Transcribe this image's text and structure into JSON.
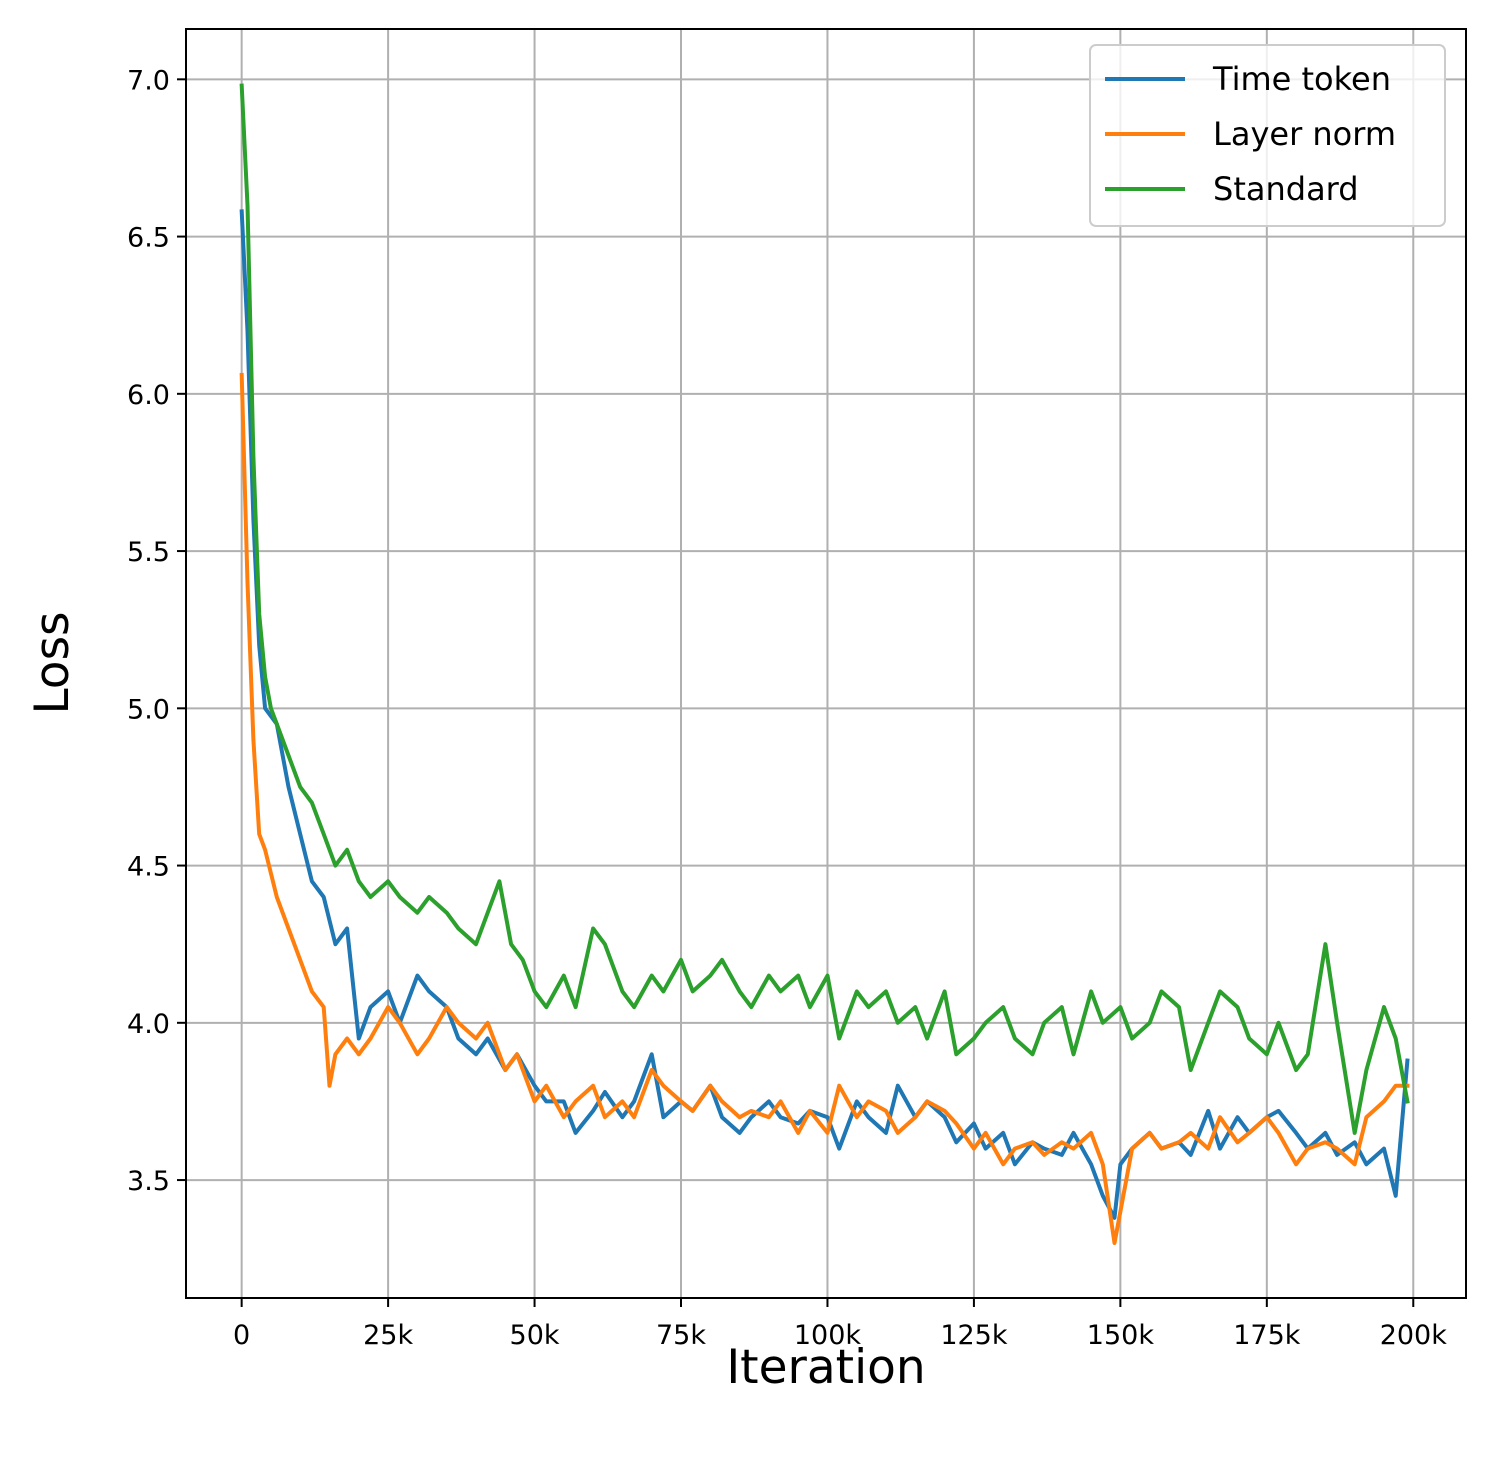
{
  "chart_data": {
    "type": "line",
    "xlabel": "Iteration",
    "ylabel": "Loss",
    "xlim": [
      -9500,
      209000
    ],
    "ylim": [
      3.125,
      7.16
    ],
    "x_ticks": [
      {
        "value": 0,
        "label": "0"
      },
      {
        "value": 25000,
        "label": "25k"
      },
      {
        "value": 50000,
        "label": "50k"
      },
      {
        "value": 75000,
        "label": "75k"
      },
      {
        "value": 100000,
        "label": "100k"
      },
      {
        "value": 125000,
        "label": "125k"
      },
      {
        "value": 150000,
        "label": "150k"
      },
      {
        "value": 175000,
        "label": "175k"
      },
      {
        "value": 200000,
        "label": "200k"
      }
    ],
    "y_ticks": [
      {
        "value": 3.5,
        "label": "3.5"
      },
      {
        "value": 4.0,
        "label": "4.0"
      },
      {
        "value": 4.5,
        "label": "4.5"
      },
      {
        "value": 5.0,
        "label": "5.0"
      },
      {
        "value": 5.5,
        "label": "5.5"
      },
      {
        "value": 6.0,
        "label": "6.0"
      },
      {
        "value": 6.5,
        "label": "6.5"
      },
      {
        "value": 7.0,
        "label": "7.0"
      }
    ],
    "grid": true,
    "legend_position": "top-right",
    "series": [
      {
        "name": "Time token",
        "color": "#1f77b4",
        "x": [
          0,
          1000,
          2000,
          3000,
          4000,
          6000,
          8000,
          10000,
          12000,
          14000,
          16000,
          18000,
          20000,
          22000,
          25000,
          27000,
          30000,
          32000,
          35000,
          37000,
          40000,
          42000,
          45000,
          47000,
          50000,
          52000,
          55000,
          57000,
          60000,
          62000,
          65000,
          67000,
          70000,
          72000,
          75000,
          77000,
          80000,
          82000,
          85000,
          87000,
          90000,
          92000,
          95000,
          97000,
          100000,
          102000,
          105000,
          107000,
          110000,
          112000,
          115000,
          117000,
          120000,
          122000,
          125000,
          127000,
          130000,
          132000,
          135000,
          137000,
          140000,
          142000,
          145000,
          147000,
          149000,
          150000,
          152000,
          155000,
          157000,
          160000,
          162000,
          165000,
          167000,
          170000,
          172000,
          175000,
          177000,
          180000,
          182000,
          185000,
          187000,
          190000,
          192000,
          195000,
          197000,
          199000
        ],
        "values": [
          6.58,
          6.2,
          5.6,
          5.2,
          5.0,
          4.95,
          4.75,
          4.6,
          4.45,
          4.4,
          4.25,
          4.3,
          3.95,
          4.05,
          4.1,
          4.0,
          4.15,
          4.1,
          4.05,
          3.95,
          3.9,
          3.95,
          3.85,
          3.9,
          3.8,
          3.75,
          3.75,
          3.65,
          3.72,
          3.78,
          3.7,
          3.75,
          3.9,
          3.7,
          3.75,
          3.72,
          3.8,
          3.7,
          3.65,
          3.7,
          3.75,
          3.7,
          3.68,
          3.72,
          3.7,
          3.6,
          3.75,
          3.7,
          3.65,
          3.8,
          3.7,
          3.75,
          3.7,
          3.62,
          3.68,
          3.6,
          3.65,
          3.55,
          3.62,
          3.6,
          3.58,
          3.65,
          3.55,
          3.45,
          3.38,
          3.55,
          3.6,
          3.65,
          3.6,
          3.62,
          3.58,
          3.72,
          3.6,
          3.7,
          3.65,
          3.7,
          3.72,
          3.65,
          3.6,
          3.65,
          3.58,
          3.62,
          3.55,
          3.6,
          3.45,
          3.88
        ]
      },
      {
        "name": "Layer norm",
        "color": "#ff7f0e",
        "x": [
          0,
          1000,
          2000,
          3000,
          4000,
          6000,
          8000,
          10000,
          12000,
          14000,
          15000,
          16000,
          18000,
          20000,
          22000,
          25000,
          27000,
          30000,
          32000,
          35000,
          37000,
          40000,
          42000,
          45000,
          47000,
          50000,
          52000,
          55000,
          57000,
          60000,
          62000,
          65000,
          67000,
          70000,
          72000,
          75000,
          77000,
          80000,
          82000,
          85000,
          87000,
          90000,
          92000,
          95000,
          97000,
          100000,
          102000,
          105000,
          107000,
          110000,
          112000,
          115000,
          117000,
          120000,
          122000,
          125000,
          127000,
          130000,
          132000,
          135000,
          137000,
          140000,
          142000,
          145000,
          147000,
          149000,
          150000,
          152000,
          155000,
          157000,
          160000,
          162000,
          165000,
          167000,
          170000,
          172000,
          175000,
          177000,
          180000,
          182000,
          185000,
          187000,
          190000,
          192000,
          195000,
          197000,
          199000
        ],
        "values": [
          6.06,
          5.4,
          4.9,
          4.6,
          4.55,
          4.4,
          4.3,
          4.2,
          4.1,
          4.05,
          3.8,
          3.9,
          3.95,
          3.9,
          3.95,
          4.05,
          4.0,
          3.9,
          3.95,
          4.05,
          4.0,
          3.95,
          4.0,
          3.85,
          3.9,
          3.75,
          3.8,
          3.7,
          3.75,
          3.8,
          3.7,
          3.75,
          3.7,
          3.85,
          3.8,
          3.75,
          3.72,
          3.8,
          3.75,
          3.7,
          3.72,
          3.7,
          3.75,
          3.65,
          3.72,
          3.65,
          3.8,
          3.7,
          3.75,
          3.72,
          3.65,
          3.7,
          3.75,
          3.72,
          3.68,
          3.6,
          3.65,
          3.55,
          3.6,
          3.62,
          3.58,
          3.62,
          3.6,
          3.65,
          3.55,
          3.3,
          3.4,
          3.6,
          3.65,
          3.6,
          3.62,
          3.65,
          3.6,
          3.7,
          3.62,
          3.65,
          3.7,
          3.65,
          3.55,
          3.6,
          3.62,
          3.6,
          3.55,
          3.7,
          3.75,
          3.8,
          3.8
        ]
      },
      {
        "name": "Standard",
        "color": "#2ca02c",
        "x": [
          0,
          1000,
          2000,
          3000,
          4000,
          5000,
          6000,
          8000,
          10000,
          12000,
          14000,
          16000,
          18000,
          20000,
          22000,
          25000,
          27000,
          30000,
          32000,
          35000,
          37000,
          40000,
          42000,
          44000,
          46000,
          48000,
          50000,
          52000,
          55000,
          57000,
          60000,
          62000,
          65000,
          67000,
          70000,
          72000,
          75000,
          77000,
          80000,
          82000,
          85000,
          87000,
          90000,
          92000,
          95000,
          97000,
          100000,
          102000,
          105000,
          107000,
          110000,
          112000,
          115000,
          117000,
          120000,
          122000,
          125000,
          127000,
          130000,
          132000,
          135000,
          137000,
          140000,
          142000,
          145000,
          147000,
          150000,
          152000,
          155000,
          157000,
          160000,
          162000,
          165000,
          167000,
          170000,
          172000,
          175000,
          177000,
          180000,
          182000,
          185000,
          187000,
          190000,
          192000,
          195000,
          197000,
          199000
        ],
        "values": [
          6.98,
          6.6,
          5.8,
          5.3,
          5.1,
          5.0,
          4.95,
          4.85,
          4.75,
          4.7,
          4.6,
          4.5,
          4.55,
          4.45,
          4.4,
          4.45,
          4.4,
          4.35,
          4.4,
          4.35,
          4.3,
          4.25,
          4.35,
          4.45,
          4.25,
          4.2,
          4.1,
          4.05,
          4.15,
          4.05,
          4.3,
          4.25,
          4.1,
          4.05,
          4.15,
          4.1,
          4.2,
          4.1,
          4.15,
          4.2,
          4.1,
          4.05,
          4.15,
          4.1,
          4.15,
          4.05,
          4.15,
          3.95,
          4.1,
          4.05,
          4.1,
          4.0,
          4.05,
          3.95,
          4.1,
          3.9,
          3.95,
          4.0,
          4.05,
          3.95,
          3.9,
          4.0,
          4.05,
          3.9,
          4.1,
          4.0,
          4.05,
          3.95,
          4.0,
          4.1,
          4.05,
          3.85,
          4.0,
          4.1,
          4.05,
          3.95,
          3.9,
          4.0,
          3.85,
          3.9,
          4.25,
          4.0,
          3.65,
          3.85,
          4.05,
          3.95,
          3.75
        ]
      }
    ]
  }
}
